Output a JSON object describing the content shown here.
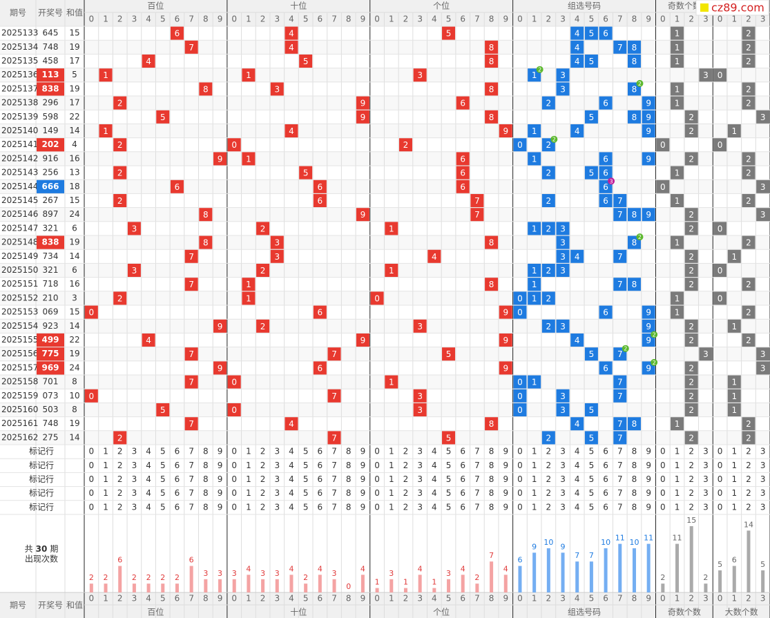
{
  "logo": "cz89.com",
  "header": {
    "issue": "期号",
    "number": "开奖号",
    "sum": "和值",
    "sections": [
      "百位",
      "十位",
      "个位",
      "组选号码",
      "奇数个数",
      "大数个数"
    ]
  },
  "digits10": [
    0,
    1,
    2,
    3,
    4,
    5,
    6,
    7,
    8,
    9
  ],
  "digits4": [
    0,
    1,
    2,
    3
  ],
  "rows": [
    {
      "issue": "2025133",
      "number": "645",
      "sum": 15,
      "digits": [
        6,
        4,
        5
      ],
      "group": [
        4,
        5,
        6
      ],
      "odd": 1,
      "big": 2
    },
    {
      "issue": "2025134",
      "number": "748",
      "sum": 19,
      "digits": [
        7,
        4,
        8
      ],
      "group": [
        4,
        7,
        8
      ],
      "odd": 1,
      "big": 2
    },
    {
      "issue": "2025135",
      "number": "458",
      "sum": 17,
      "digits": [
        4,
        5,
        8
      ],
      "group": [
        4,
        5,
        8
      ],
      "odd": 1,
      "big": 2
    },
    {
      "issue": "2025136",
      "number": "113",
      "sum": 5,
      "digits": [
        1,
        1,
        3
      ],
      "group": [
        1,
        3
      ],
      "times": [
        2,
        null
      ],
      "odd": 3,
      "big": 0
    },
    {
      "issue": "2025137",
      "number": "838",
      "sum": 19,
      "digits": [
        8,
        3,
        8
      ],
      "group": [
        3,
        8
      ],
      "times": [
        null,
        2
      ],
      "odd": 1,
      "big": 2
    },
    {
      "issue": "2025138",
      "number": "296",
      "sum": 17,
      "digits": [
        2,
        9,
        6
      ],
      "group": [
        2,
        6,
        9
      ],
      "odd": 1,
      "big": 2
    },
    {
      "issue": "2025139",
      "number": "598",
      "sum": 22,
      "digits": [
        5,
        9,
        8
      ],
      "group": [
        5,
        8,
        9
      ],
      "odd": 2,
      "big": 3
    },
    {
      "issue": "2025140",
      "number": "149",
      "sum": 14,
      "digits": [
        1,
        4,
        9
      ],
      "group": [
        1,
        4,
        9
      ],
      "odd": 2,
      "big": 1
    },
    {
      "issue": "2025141",
      "number": "202",
      "sum": 4,
      "digits": [
        2,
        0,
        2
      ],
      "group": [
        0,
        2
      ],
      "times": [
        null,
        2
      ],
      "odd": 0,
      "big": 0
    },
    {
      "issue": "2025142",
      "number": "916",
      "sum": 16,
      "digits": [
        9,
        1,
        6
      ],
      "group": [
        1,
        6,
        9
      ],
      "odd": 2,
      "big": 2
    },
    {
      "issue": "2025143",
      "number": "256",
      "sum": 13,
      "digits": [
        2,
        5,
        6
      ],
      "group": [
        2,
        5,
        6
      ],
      "odd": 1,
      "big": 2
    },
    {
      "issue": "2025144",
      "number": "666",
      "sum": 18,
      "digits": [
        6,
        6,
        6
      ],
      "group": [
        6
      ],
      "times": [
        3
      ],
      "odd": 0,
      "big": 3
    },
    {
      "issue": "2025145",
      "number": "267",
      "sum": 15,
      "digits": [
        2,
        6,
        7
      ],
      "group": [
        2,
        6,
        7
      ],
      "odd": 1,
      "big": 2
    },
    {
      "issue": "2025146",
      "number": "897",
      "sum": 24,
      "digits": [
        8,
        9,
        7
      ],
      "group": [
        7,
        8,
        9
      ],
      "odd": 2,
      "big": 3
    },
    {
      "issue": "2025147",
      "number": "321",
      "sum": 6,
      "digits": [
        3,
        2,
        1
      ],
      "group": [
        1,
        2,
        3
      ],
      "odd": 2,
      "big": 0
    },
    {
      "issue": "2025148",
      "number": "838",
      "sum": 19,
      "digits": [
        8,
        3,
        8
      ],
      "group": [
        3,
        8
      ],
      "times": [
        null,
        2
      ],
      "odd": 1,
      "big": 2
    },
    {
      "issue": "2025149",
      "number": "734",
      "sum": 14,
      "digits": [
        7,
        3,
        4
      ],
      "group": [
        3,
        4,
        7
      ],
      "odd": 2,
      "big": 1
    },
    {
      "issue": "2025150",
      "number": "321",
      "sum": 6,
      "digits": [
        3,
        2,
        1
      ],
      "group": [
        1,
        2,
        3
      ],
      "odd": 2,
      "big": 0
    },
    {
      "issue": "2025151",
      "number": "718",
      "sum": 16,
      "digits": [
        7,
        1,
        8
      ],
      "group": [
        1,
        7,
        8
      ],
      "odd": 2,
      "big": 2
    },
    {
      "issue": "2025152",
      "number": "210",
      "sum": 3,
      "digits": [
        2,
        1,
        0
      ],
      "group": [
        0,
        1,
        2
      ],
      "odd": 1,
      "big": 0
    },
    {
      "issue": "2025153",
      "number": "069",
      "sum": 15,
      "digits": [
        0,
        6,
        9
      ],
      "group": [
        0,
        6,
        9
      ],
      "odd": 1,
      "big": 2
    },
    {
      "issue": "2025154",
      "number": "923",
      "sum": 14,
      "digits": [
        9,
        2,
        3
      ],
      "group": [
        2,
        3,
        9
      ],
      "odd": 2,
      "big": 1
    },
    {
      "issue": "2025155",
      "number": "499",
      "sum": 22,
      "digits": [
        4,
        9,
        9
      ],
      "group": [
        4,
        9
      ],
      "times": [
        null,
        2
      ],
      "odd": 2,
      "big": 2
    },
    {
      "issue": "2025156",
      "number": "775",
      "sum": 19,
      "digits": [
        7,
        7,
        5
      ],
      "group": [
        5,
        7
      ],
      "times": [
        null,
        2
      ],
      "odd": 3,
      "big": 3
    },
    {
      "issue": "2025157",
      "number": "969",
      "sum": 24,
      "digits": [
        9,
        6,
        9
      ],
      "group": [
        6,
        9
      ],
      "times": [
        null,
        2
      ],
      "odd": 2,
      "big": 3
    },
    {
      "issue": "2025158",
      "number": "701",
      "sum": 8,
      "digits": [
        7,
        0,
        1
      ],
      "group": [
        0,
        1,
        7
      ],
      "odd": 2,
      "big": 1
    },
    {
      "issue": "2025159",
      "number": "073",
      "sum": 10,
      "digits": [
        0,
        7,
        3
      ],
      "group": [
        0,
        3,
        7
      ],
      "odd": 2,
      "big": 1
    },
    {
      "issue": "2025160",
      "number": "503",
      "sum": 8,
      "digits": [
        5,
        0,
        3
      ],
      "group": [
        0,
        3,
        5
      ],
      "odd": 2,
      "big": 1
    },
    {
      "issue": "2025161",
      "number": "748",
      "sum": 19,
      "digits": [
        7,
        4,
        8
      ],
      "group": [
        4,
        7,
        8
      ],
      "odd": 1,
      "big": 2
    },
    {
      "issue": "2025162",
      "number": "275",
      "sum": 14,
      "digits": [
        2,
        7,
        5
      ],
      "group": [
        2,
        5,
        7
      ],
      "odd": 2,
      "big": 2
    }
  ],
  "mark_rows": [
    "标记行",
    "标记行",
    "标记行",
    "标记行",
    "标记行"
  ],
  "stats": {
    "prefix": "共",
    "periods": 30,
    "suffix": "期",
    "label": "出现次数",
    "bai": [
      2,
      2,
      6,
      2,
      2,
      2,
      2,
      6,
      3,
      3
    ],
    "shi": [
      3,
      4,
      3,
      3,
      4,
      2,
      4,
      3,
      0,
      4
    ],
    "ge": [
      1,
      3,
      1,
      4,
      1,
      3,
      4,
      2,
      7,
      4
    ],
    "group": [
      6,
      9,
      10,
      9,
      7,
      7,
      10,
      11,
      10,
      11
    ],
    "odd": [
      2,
      11,
      15,
      2
    ],
    "big": [
      5,
      6,
      14,
      5
    ]
  }
}
